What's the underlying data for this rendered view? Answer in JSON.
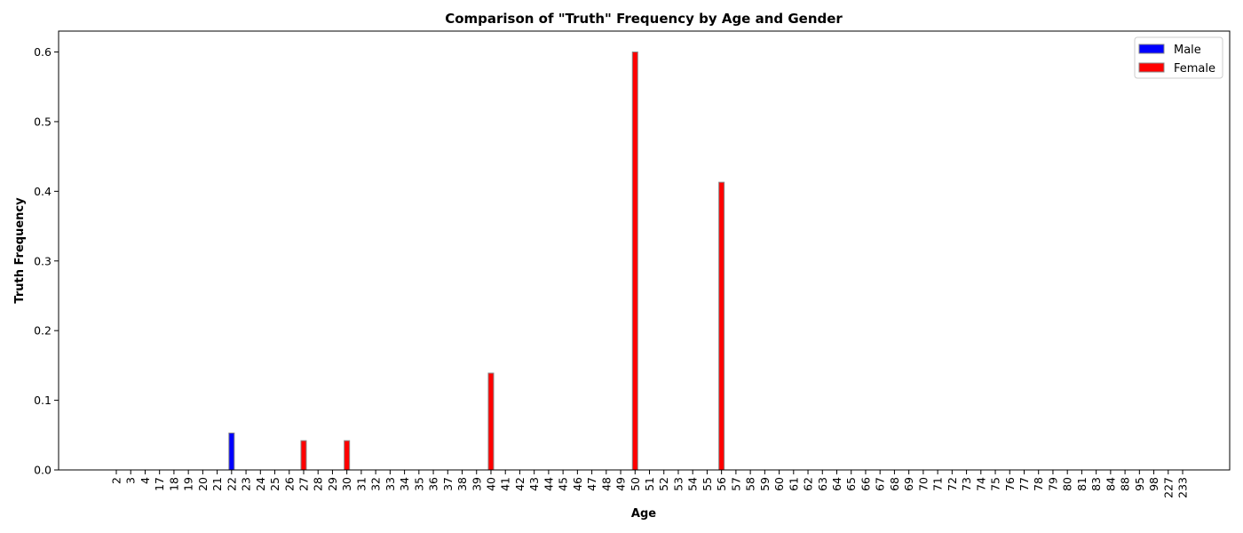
{
  "chart_data": {
    "type": "bar",
    "title": "Comparison of \"Truth\" Frequency by Age and Gender",
    "xlabel": "Age",
    "ylabel": "Truth Frequency",
    "ylim": [
      0,
      0.63
    ],
    "yticks": [
      "0.0",
      "0.1",
      "0.2",
      "0.3",
      "0.4",
      "0.5",
      "0.6"
    ],
    "legend_position": "top-right",
    "grid": false,
    "categories": [
      "2",
      "3",
      "4",
      "17",
      "18",
      "19",
      "20",
      "21",
      "22",
      "23",
      "24",
      "25",
      "26",
      "27",
      "28",
      "29",
      "30",
      "31",
      "32",
      "33",
      "34",
      "35",
      "36",
      "37",
      "38",
      "39",
      "40",
      "41",
      "42",
      "43",
      "44",
      "45",
      "46",
      "47",
      "48",
      "49",
      "50",
      "51",
      "52",
      "53",
      "54",
      "55",
      "56",
      "57",
      "58",
      "59",
      "60",
      "61",
      "62",
      "63",
      "64",
      "65",
      "66",
      "67",
      "68",
      "69",
      "70",
      "71",
      "72",
      "73",
      "74",
      "75",
      "76",
      "77",
      "78",
      "79",
      "80",
      "81",
      "83",
      "84",
      "88",
      "95",
      "98",
      "227",
      "233"
    ],
    "series": [
      {
        "name": "Male",
        "color": "#0000ff",
        "values": {
          "22": 0.053
        }
      },
      {
        "name": "Female",
        "color": "#ff0000",
        "values": {
          "27": 0.042,
          "30": 0.042,
          "40": 0.139,
          "50": 0.6,
          "56": 0.413
        }
      }
    ]
  }
}
